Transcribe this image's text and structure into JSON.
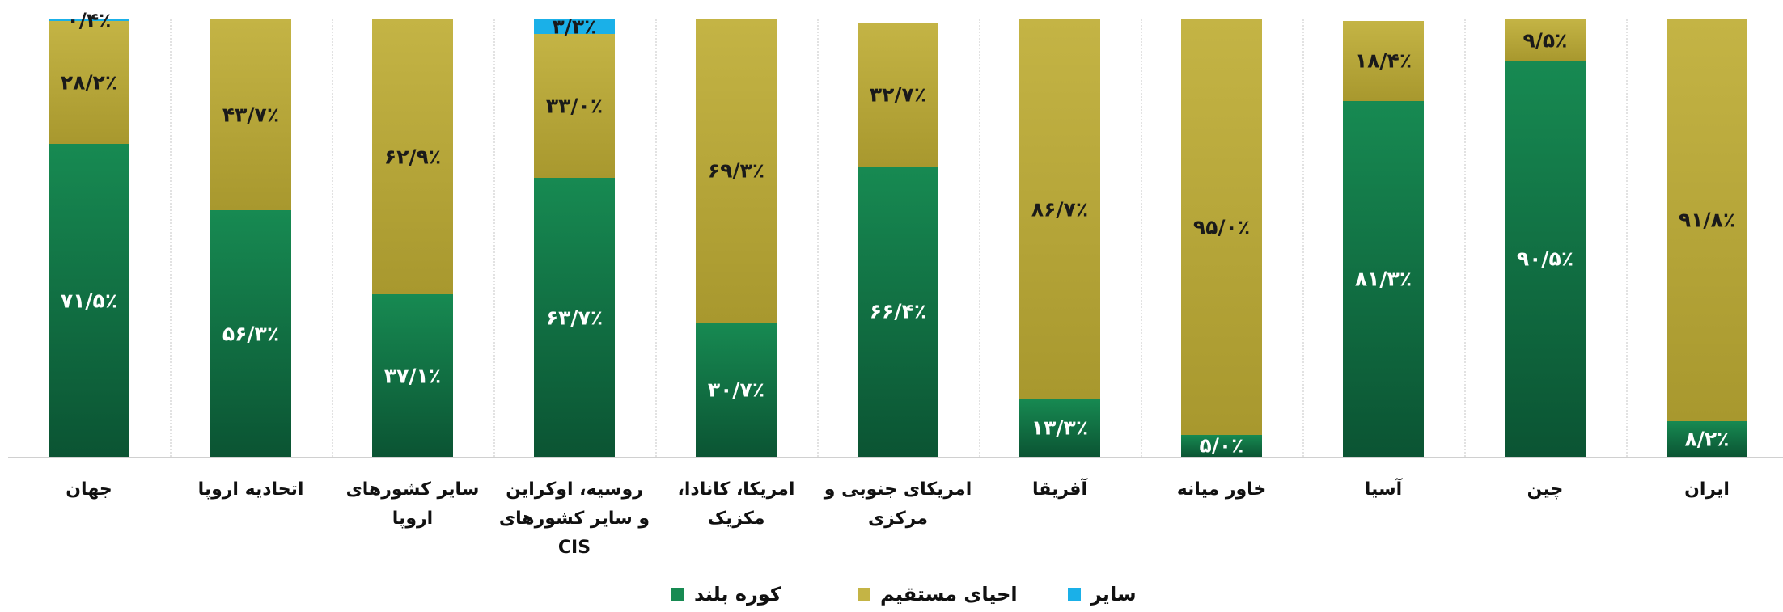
{
  "chart_data": {
    "type": "stacked_bar",
    "categories": [
      "جهان",
      "اتحادیه اروپا",
      "سایر کشورهای اروپا",
      "روسیه، اوکراین و سایر کشورهای CIS",
      "امریکا، کانادا، مکزیک",
      "امریکای جنوبی و مرکزی",
      "آفریقا",
      "خاور میانه",
      "آسیا",
      "چین",
      "ایران"
    ],
    "ylim": [
      0,
      100
    ],
    "series": [
      {
        "name": "کوره بلند",
        "color": "#178a52",
        "values": [
          71.5,
          56.3,
          37.1,
          63.7,
          30.7,
          66.4,
          13.3,
          5.0,
          81.3,
          90.5,
          8.2
        ],
        "value_labels": [
          "۷۱/۵٪",
          "۵۶/۳٪",
          "۳۷/۱٪",
          "۶۳/۷٪",
          "۳۰/۷٪",
          "۶۶/۴٪",
          "۱۳/۳٪",
          "۵/۰٪",
          "۸۱/۳٪",
          "۹۰/۵٪",
          "۸/۲٪"
        ]
      },
      {
        "name": "احیای مستقیم",
        "color": "#c4b445",
        "values": [
          28.2,
          43.7,
          62.9,
          33.0,
          69.3,
          32.7,
          86.7,
          95.0,
          18.4,
          9.5,
          91.8
        ],
        "value_labels": [
          "۲۸/۲٪",
          "۴۳/۷٪",
          "۶۲/۹٪",
          "۳۳/۰٪",
          "۶۹/۳٪",
          "۳۲/۷٪",
          "۸۶/۷٪",
          "۹۵/۰٪",
          "۱۸/۴٪",
          "۹/۵٪",
          "۹۱/۸٪"
        ]
      },
      {
        "name": "سایر",
        "color": "#1ab0e8",
        "values": [
          0.4,
          null,
          null,
          3.3,
          null,
          null,
          null,
          null,
          null,
          null,
          null
        ],
        "value_labels": [
          "۰/۴٪",
          null,
          null,
          "۳/۳٪",
          null,
          null,
          null,
          null,
          null,
          null,
          null
        ]
      }
    ]
  }
}
